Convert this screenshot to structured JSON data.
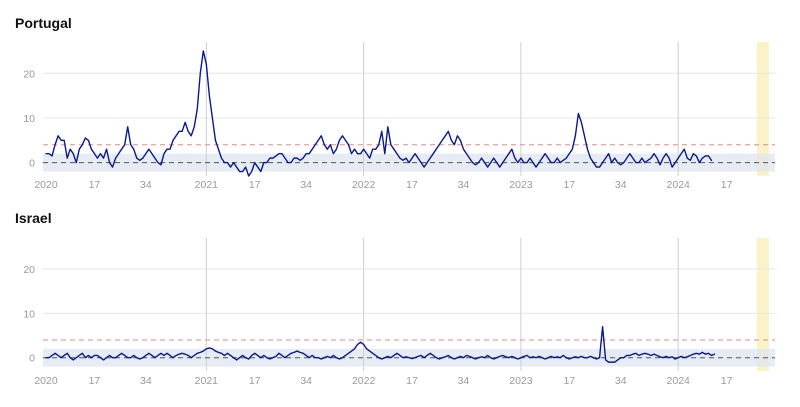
{
  "colors": {
    "series": "#0a1a8c",
    "threshold": "#e58a8a",
    "zero_line": "#555555",
    "baseline_band": "#dde4f0",
    "highlight_band": "#f9f3c7",
    "grid": "#e6e6e6",
    "year_grid": "#cfcfcf",
    "tick_text": "#9a9a9a"
  },
  "chart_data": [
    {
      "type": "line",
      "title": "Portugal",
      "xlabel": "",
      "ylabel": "",
      "ylim": [
        -3,
        27
      ],
      "y_ticks": [
        0,
        10,
        20
      ],
      "x_ticks": [
        {
          "week": 1,
          "label": "2020"
        },
        {
          "week": 17,
          "label": "17"
        },
        {
          "week": 34,
          "label": "34"
        },
        {
          "week": 54,
          "label": "2021"
        },
        {
          "week": 70,
          "label": "17"
        },
        {
          "week": 87,
          "label": "34"
        },
        {
          "week": 106,
          "label": "2022"
        },
        {
          "week": 122,
          "label": "17"
        },
        {
          "week": 139,
          "label": "34"
        },
        {
          "week": 158,
          "label": "2023"
        },
        {
          "week": 174,
          "label": "17"
        },
        {
          "week": 191,
          "label": "34"
        },
        {
          "week": 210,
          "label": "2024"
        },
        {
          "week": 226,
          "label": "17"
        }
      ],
      "year_lines": [
        54,
        106,
        158,
        210
      ],
      "threshold": 4,
      "baseline_band": [
        -2,
        2
      ],
      "highlight_weeks": [
        236,
        240
      ],
      "series": [
        {
          "x_start": 1,
          "values": [
            2,
            2,
            1.5,
            4,
            6,
            5,
            5,
            1,
            3,
            2,
            0,
            3,
            4,
            5.5,
            5,
            3,
            2,
            1,
            2,
            1,
            3,
            0,
            -1,
            1,
            2,
            3,
            4,
            8,
            4,
            3,
            1,
            0.5,
            1,
            2,
            3,
            2,
            1,
            0,
            -0.5,
            2,
            3,
            3,
            5,
            6,
            7,
            7,
            9,
            7,
            6,
            8,
            12,
            20,
            25,
            22,
            15,
            10,
            5,
            3,
            1,
            0,
            0,
            -1,
            0,
            -1,
            -2,
            -2,
            -1,
            -3,
            -2,
            0,
            -1,
            -2,
            0,
            0,
            1,
            1,
            1.5,
            2,
            2,
            1,
            0,
            0,
            1,
            1,
            0.5,
            1,
            2,
            2,
            3,
            4,
            5,
            6,
            4,
            3,
            4,
            2,
            3,
            5,
            6,
            5,
            4,
            2,
            3,
            2,
            2,
            3,
            2,
            1,
            3,
            3,
            4,
            7,
            2,
            8,
            4,
            3,
            2,
            1,
            0.5,
            1,
            0,
            1,
            2,
            1,
            0,
            -1,
            0,
            1,
            2,
            3,
            4,
            5,
            6,
            7,
            5,
            4,
            6,
            5,
            3,
            2,
            1,
            0,
            -0.5,
            0,
            1,
            0,
            -1,
            0,
            1,
            0,
            -1,
            0,
            1,
            2,
            3,
            1,
            0,
            1,
            0,
            0,
            1,
            0,
            -1,
            0,
            1,
            2,
            1,
            0,
            0,
            1,
            0,
            0.5,
            1,
            2,
            3,
            6,
            11,
            9,
            6,
            3,
            1,
            0,
            -1,
            -1,
            0,
            1,
            2,
            0,
            1,
            0,
            -0.5,
            0,
            1,
            2,
            1,
            0,
            0,
            1,
            0,
            0.5,
            1,
            2,
            1,
            -0.5,
            1,
            2,
            1,
            -1,
            0,
            1,
            2,
            3,
            1,
            0.5,
            2,
            1.5,
            0,
            1,
            1.5,
            1.5,
            0.5
          ]
        }
      ]
    },
    {
      "type": "line",
      "title": "Israel",
      "xlabel": "",
      "ylabel": "",
      "ylim": [
        -3,
        27
      ],
      "y_ticks": [
        0,
        10,
        20
      ],
      "x_ticks": [
        {
          "week": 1,
          "label": "2020"
        },
        {
          "week": 17,
          "label": "17"
        },
        {
          "week": 34,
          "label": "34"
        },
        {
          "week": 54,
          "label": "2021"
        },
        {
          "week": 70,
          "label": "17"
        },
        {
          "week": 87,
          "label": "34"
        },
        {
          "week": 106,
          "label": "2022"
        },
        {
          "week": 122,
          "label": "17"
        },
        {
          "week": 139,
          "label": "34"
        },
        {
          "week": 158,
          "label": "2023"
        },
        {
          "week": 174,
          "label": "17"
        },
        {
          "week": 191,
          "label": "34"
        },
        {
          "week": 210,
          "label": "2024"
        },
        {
          "week": 226,
          "label": "17"
        }
      ],
      "year_lines": [
        54,
        106,
        158,
        210
      ],
      "threshold": 4,
      "baseline_band": [
        -2,
        2
      ],
      "highlight_weeks": [
        236,
        240
      ],
      "series": [
        {
          "x_start": 1,
          "values": [
            0,
            0,
            0.5,
            1,
            0.5,
            0,
            0.5,
            1,
            0,
            -0.5,
            0,
            0.5,
            1,
            0,
            0.5,
            0,
            0.5,
            0.5,
            0,
            -0.5,
            0,
            0.5,
            0,
            0,
            0.5,
            1,
            0.5,
            0,
            0,
            0.5,
            0,
            -0.3,
            0,
            0.5,
            1,
            0.5,
            0,
            0.5,
            1,
            0.5,
            1,
            0.5,
            0,
            0.5,
            0.8,
            1,
            0.8,
            0.5,
            0,
            0.5,
            1,
            1.2,
            1.5,
            2,
            2.2,
            2,
            1.5,
            1.2,
            1,
            0.5,
            1,
            0.5,
            0,
            -0.5,
            0,
            0.5,
            0,
            -0.3,
            0.5,
            1,
            0.5,
            0,
            0.5,
            0,
            -0.3,
            0,
            0.3,
            1,
            0.5,
            0,
            0.5,
            1,
            1.2,
            1.5,
            1.2,
            1,
            0.5,
            0,
            0.5,
            0,
            0,
            -0.3,
            0,
            0.3,
            0,
            0.5,
            0,
            -0.3,
            0,
            0.5,
            1,
            1.5,
            2,
            3,
            3.5,
            3,
            2,
            1.5,
            1,
            0.5,
            0,
            -0.3,
            0,
            0.3,
            0,
            0.5,
            1,
            0.5,
            0,
            0.2,
            0,
            -0.2,
            0,
            0.3,
            0.5,
            0,
            0.5,
            1,
            0.5,
            0,
            -0.3,
            0,
            0.2,
            0.5,
            0,
            -0.3,
            0,
            0.3,
            0,
            0.5,
            0.3,
            0,
            -0.3,
            0,
            0.2,
            0,
            0.5,
            0,
            -0.3,
            0,
            0.3,
            0.5,
            0.2,
            0,
            0.3,
            0,
            -0.3,
            0,
            0.3,
            0.5,
            0,
            0.2,
            0,
            0.3,
            0,
            -0.3,
            0,
            0.3,
            0,
            0.2,
            0,
            0.5,
            0,
            -0.3,
            0,
            0.2,
            0,
            0.3,
            0,
            0,
            0.3,
            0,
            -0.3,
            0,
            7,
            -0.5,
            -1,
            -1,
            -1,
            -0.5,
            0,
            0,
            0.5,
            0.5,
            0.8,
            1,
            0.5,
            0.8,
            1,
            0.8,
            0.5,
            0.8,
            0.5,
            0.2,
            0,
            0.3,
            0,
            0.2,
            -0.3,
            0,
            0.3,
            0,
            0.2,
            0.5,
            0.8,
            1,
            0.8,
            1.2,
            0.8,
            1,
            0.5,
            0.8
          ]
        }
      ]
    }
  ]
}
